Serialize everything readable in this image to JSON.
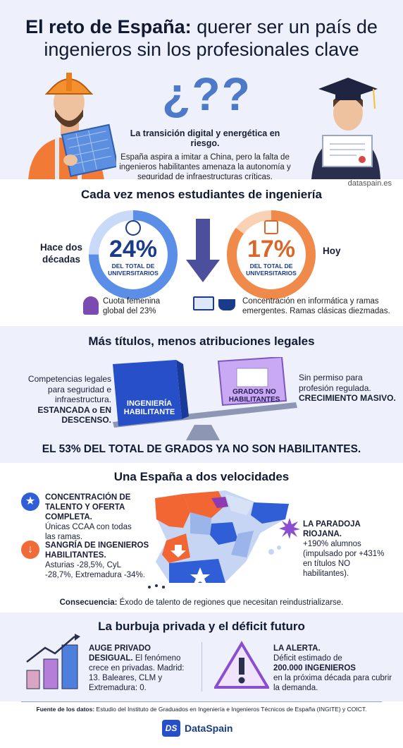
{
  "header": {
    "title_bold": "El reto de España:",
    "title_rest": "querer ser un país de ingenieros sin los profesionales clave",
    "qmarks": "¿??",
    "subtitle_bold": "La transición digital y energética en riesgo.",
    "subtitle_text": "España aspira a imitar a China, pero la falta de ingenieros habilitantes amenaza la autonomía y seguridad de infraestructuras críticas.",
    "site": "dataspain.es"
  },
  "students": {
    "title": "Cada vez menos estudiantes de ingeniería",
    "left_label": "Hace dos décadas",
    "left_value": "24%",
    "left_caption": "DEL TOTAL DE UNIVERSITARIOS",
    "right_label": "Hoy",
    "right_value": "17%",
    "right_caption": "DEL TOTAL DE UNIVERSITARIOS",
    "female_text": "Cuota femenina global del 23%",
    "concentration_text": "Concentración en informática y ramas emergentes. Ramas clásicas diezmadas.",
    "colors": {
      "blue": "#5b8ee6",
      "orange": "#f08a4b",
      "navy": "#1a3a8a"
    }
  },
  "titles": {
    "title": "Más títulos, menos atribuciones legales",
    "left_text": "Competencias legales para seguridad e infraestructura.",
    "left_bold": "ESTANCADA o EN DESCENSO.",
    "box_left": "INGENIERÍA HABILITANTE",
    "box_right": "GRADOS NO HABILITANTES",
    "right_text": "Sin permiso para profesión regulada.",
    "right_bold": "CRECIMIENTO MASIVO.",
    "stat": "EL 53% DEL TOTAL DE GRADOS YA NO SON HABILITANTES."
  },
  "spain": {
    "title": "Una España a dos velocidades",
    "item1_bold": "CONCENTRACIÓN DE TALENTO Y OFERTA COMPLETA.",
    "item1_text": "Únicas CCAA con todas las ramas.",
    "item2_bold": "SANGRÍA DE INGENIEROS HABILITANTES.",
    "item2_text": "Asturias -28,5%, CyL -28,7%, Extremadura -34%.",
    "item3_bold": "LA PARADOJA RIOJANA.",
    "item3_text": "+190% alumnos (impulsado por +431% en títulos NO habilitantes).",
    "consequence_bold": "Consecuencia:",
    "consequence_text": "Éxodo de talento de regiones que necesitan reindustrializarse."
  },
  "bubble": {
    "title": "La burbuja privada y el déficit futuro",
    "left_bold": "AUGE PRIVADO DESIGUAL.",
    "left_text": "El fenómeno crece en privadas. Madrid: 13. Baleares, CLM y Extremadura: 0.",
    "right_bold": "LA ALERTA.",
    "right_text1": "Déficit estimado de",
    "right_bold2": "200.000 INGENIEROS",
    "right_text2": "en la próxima década para cubrir la demanda."
  },
  "footer": {
    "source_bold": "Fuente de los datos:",
    "source_text": "Estudio del Instituto de Graduados en Ingeniería e Ingenieros Técnicos de España (INGITE) y COICT.",
    "brand": "DataSpain",
    "logo": "DS"
  }
}
